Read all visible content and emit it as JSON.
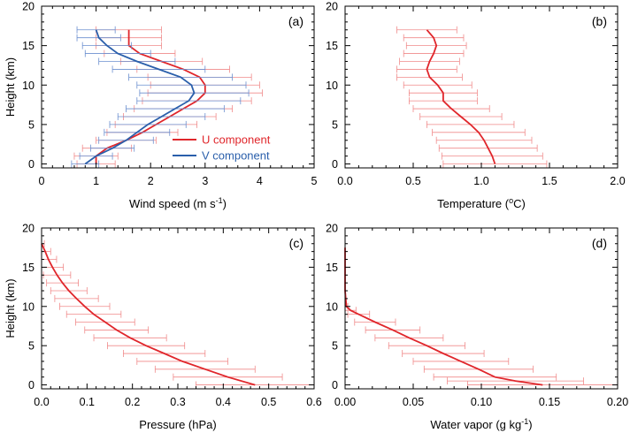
{
  "chart_data": [
    {
      "panel": "(a)",
      "type": "line",
      "xlabel": "Wind speed (m s",
      "xlabel_sup": "-1",
      "xlabel_tail": ")",
      "ylabel": "Height (km)",
      "xlim": [
        0,
        5
      ],
      "ylim": [
        -0.5,
        20
      ],
      "xticks": [
        "0",
        "1",
        "2",
        "3",
        "4",
        "5"
      ],
      "yticks": [
        "0",
        "5",
        "10",
        "15",
        "20"
      ],
      "legend_position": "lower-right",
      "series": [
        {
          "name": "U component",
          "color": "#e0262b",
          "y": [
            0,
            1,
            2,
            3,
            4,
            5,
            6,
            7,
            8,
            9,
            10,
            11,
            12,
            13,
            14,
            15,
            16,
            17
          ],
          "x": [
            1.0,
            1.0,
            1.2,
            1.55,
            1.85,
            2.1,
            2.35,
            2.6,
            2.85,
            3.0,
            3.0,
            2.9,
            2.6,
            2.2,
            1.8,
            1.6,
            1.6,
            1.6
          ],
          "err": [
            0.35,
            0.4,
            0.45,
            0.55,
            0.65,
            0.75,
            0.85,
            0.9,
            1.0,
            1.05,
            1.0,
            0.95,
            0.85,
            0.75,
            0.65,
            0.6,
            0.6,
            0.6
          ]
        },
        {
          "name": "V component",
          "color": "#2a5fab",
          "y": [
            0,
            1,
            2,
            3,
            4,
            5,
            6,
            7,
            8,
            9,
            10,
            11,
            12,
            13,
            14,
            15,
            16,
            17
          ],
          "x": [
            0.8,
            1.0,
            1.3,
            1.55,
            1.75,
            1.95,
            2.2,
            2.45,
            2.7,
            2.8,
            2.75,
            2.55,
            2.15,
            1.75,
            1.4,
            1.2,
            1.05,
            1.0
          ],
          "err": [
            0.25,
            0.3,
            0.4,
            0.5,
            0.6,
            0.7,
            0.8,
            0.9,
            0.95,
            1.0,
            1.0,
            0.95,
            0.85,
            0.7,
            0.6,
            0.45,
            0.4,
            0.35
          ]
        }
      ]
    },
    {
      "panel": "(b)",
      "type": "line",
      "xlabel": "Temperature (",
      "xlabel_sup": "o",
      "xlabel_tail": "C)",
      "ylabel": "",
      "xlim": [
        0,
        2
      ],
      "ylim": [
        -0.5,
        20
      ],
      "xticks": [
        "0.0",
        "0.5",
        "1.0",
        "1.5",
        "2.0"
      ],
      "yticks": [
        "0",
        "5",
        "10",
        "15",
        "20"
      ],
      "series": [
        {
          "color": "#e0262b",
          "y": [
            0,
            1,
            2,
            3,
            4,
            5,
            6,
            7,
            8,
            9,
            10,
            11,
            12,
            13,
            14,
            15,
            16,
            17
          ],
          "x": [
            1.1,
            1.08,
            1.05,
            1.02,
            0.98,
            0.92,
            0.85,
            0.78,
            0.72,
            0.72,
            0.68,
            0.62,
            0.6,
            0.62,
            0.65,
            0.67,
            0.65,
            0.6
          ],
          "err": [
            0.38,
            0.37,
            0.36,
            0.35,
            0.34,
            0.32,
            0.3,
            0.28,
            0.25,
            0.25,
            0.25,
            0.24,
            0.22,
            0.22,
            0.22,
            0.22,
            0.22,
            0.22
          ]
        }
      ]
    },
    {
      "panel": "(c)",
      "type": "line",
      "xlabel": "Pressure (hPa)",
      "xlabel_sup": "",
      "xlabel_tail": "",
      "ylabel": "Height (km)",
      "xlim": [
        0,
        0.6
      ],
      "ylim": [
        -0.5,
        20
      ],
      "xticks": [
        "0.0",
        "0.1",
        "0.2",
        "0.3",
        "0.4",
        "0.5",
        "0.6"
      ],
      "yticks": [
        "0",
        "5",
        "10",
        "15",
        "20"
      ],
      "series": [
        {
          "color": "#e0262b",
          "y": [
            0,
            1,
            2,
            3,
            4,
            5,
            6,
            7,
            8,
            9,
            10,
            11,
            12,
            13,
            14,
            15,
            16,
            17,
            18
          ],
          "x": [
            0.47,
            0.41,
            0.36,
            0.31,
            0.27,
            0.23,
            0.195,
            0.165,
            0.14,
            0.115,
            0.095,
            0.077,
            0.06,
            0.046,
            0.034,
            0.024,
            0.015,
            0.008,
            0.0
          ],
          "err": [
            0.13,
            0.12,
            0.11,
            0.1,
            0.09,
            0.085,
            0.08,
            0.07,
            0.065,
            0.06,
            0.055,
            0.048,
            0.04,
            0.035,
            0.03,
            0.024,
            0.018,
            0.012,
            0.006
          ]
        }
      ]
    },
    {
      "panel": "(d)",
      "type": "line",
      "xlabel": "Water vapor (g kg",
      "xlabel_sup": "-1",
      "xlabel_tail": ")",
      "ylabel": "",
      "xlim": [
        0,
        0.2
      ],
      "ylim": [
        -0.5,
        20
      ],
      "xticks": [
        "0.00",
        "0.05",
        "0.10",
        "0.15",
        "0.20"
      ],
      "yticks": [
        "0",
        "5",
        "10",
        "15",
        "20"
      ],
      "series": [
        {
          "color": "#e0262b",
          "y": [
            0,
            0.5,
            1,
            2,
            3,
            4,
            5,
            6,
            7,
            8,
            9,
            9.5,
            10,
            12,
            14,
            16,
            17.5
          ],
          "x": [
            0.145,
            0.125,
            0.11,
            0.098,
            0.085,
            0.072,
            0.06,
            0.047,
            0.035,
            0.022,
            0.01,
            0.004,
            0.001,
            0.0,
            0.0,
            0.0,
            0.0
          ],
          "err": [
            0.055,
            0.05,
            0.045,
            0.04,
            0.035,
            0.03,
            0.028,
            0.025,
            0.02,
            0.015,
            0.008,
            0.004,
            0.001,
            0.0,
            0.0,
            0.0,
            0.0
          ]
        }
      ]
    }
  ]
}
